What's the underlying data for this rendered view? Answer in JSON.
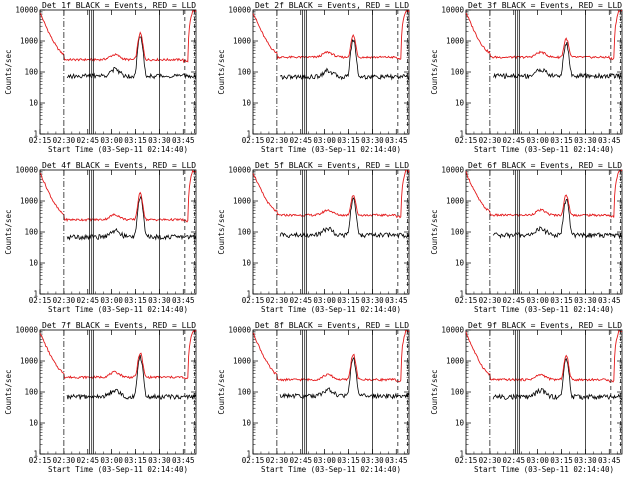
{
  "chart_data": [
    {
      "type": "line",
      "title": "Det 1f BLACK = Events, RED = LLD",
      "xlabel": "Start Time (03-Sep-11 02:14:40)",
      "ylabel": "Counts/sec",
      "log_y": true,
      "ylim": [
        1,
        10000
      ],
      "xlim": [
        "02:15",
        "03:53"
      ],
      "x_ticks": [
        "02:15",
        "02:30",
        "02:45",
        "03:00",
        "03:15",
        "03:30",
        "03:45"
      ],
      "y_ticks": [
        "1",
        "10",
        "100",
        "1000",
        "10000"
      ],
      "red_level": 250,
      "black_level": 75,
      "peak": 1500,
      "red_label": "RED = LLD",
      "black_label": "BLACK = Events"
    },
    {
      "type": "line",
      "title": "Det 2f BLACK = Events, RED = LLD",
      "xlabel": "Start Time (03-Sep-11 02:14:40)",
      "ylabel": "Counts/sec",
      "log_y": true,
      "ylim": [
        1,
        10000
      ],
      "xlim": [
        "02:15",
        "03:53"
      ],
      "x_ticks": [
        "02:15",
        "02:30",
        "02:45",
        "03:00",
        "03:15",
        "03:30",
        "03:45"
      ],
      "y_ticks": [
        "1",
        "10",
        "100",
        "1000",
        "10000"
      ],
      "red_level": 300,
      "black_level": 70,
      "peak": 1200,
      "red_label": "RED = LLD",
      "black_label": "BLACK = Events"
    },
    {
      "type": "line",
      "title": "Det 3f BLACK = Events, RED = LLD",
      "xlabel": "Start Time (03-Sep-11 02:14:40)",
      "ylabel": "Counts/sec",
      "log_y": true,
      "ylim": [
        1,
        10000
      ],
      "xlim": [
        "02:15",
        "03:53"
      ],
      "x_ticks": [
        "02:15",
        "02:30",
        "02:45",
        "03:00",
        "03:15",
        "03:30",
        "03:45"
      ],
      "y_ticks": [
        "1",
        "10",
        "100",
        "1000",
        "10000"
      ],
      "red_level": 300,
      "black_level": 75,
      "peak": 900,
      "red_label": "RED = LLD",
      "black_label": "BLACK = Events"
    },
    {
      "type": "line",
      "title": "Det 4f BLACK = Events, RED = LLD",
      "xlabel": "Start Time (03-Sep-11 02:14:40)",
      "ylabel": "Counts/sec",
      "log_y": true,
      "ylim": [
        1,
        10000
      ],
      "xlim": [
        "02:15",
        "03:53"
      ],
      "x_ticks": [
        "02:15",
        "02:30",
        "02:45",
        "03:00",
        "03:15",
        "03:30",
        "03:45"
      ],
      "y_ticks": [
        "1",
        "10",
        "100",
        "1000",
        "10000"
      ],
      "red_level": 250,
      "black_level": 70,
      "peak": 1500,
      "red_label": "RED = LLD",
      "black_label": "BLACK = Events"
    },
    {
      "type": "line",
      "title": "Det 5f BLACK = Events, RED = LLD",
      "xlabel": "Start Time (03-Sep-11 02:14:40)",
      "ylabel": "Counts/sec",
      "log_y": true,
      "ylim": [
        1,
        10000
      ],
      "xlim": [
        "02:15",
        "03:53"
      ],
      "x_ticks": [
        "02:15",
        "02:30",
        "02:45",
        "03:00",
        "03:15",
        "03:30",
        "03:45"
      ],
      "y_ticks": [
        "1",
        "10",
        "100",
        "1000",
        "10000"
      ],
      "red_level": 350,
      "black_level": 80,
      "peak": 1200,
      "red_label": "RED = LLD",
      "black_label": "BLACK = Events"
    },
    {
      "type": "line",
      "title": "Det 6f BLACK = Events, RED = LLD",
      "xlabel": "Start Time (03-Sep-11 02:14:40)",
      "ylabel": "Counts/sec",
      "log_y": true,
      "ylim": [
        1,
        10000
      ],
      "xlim": [
        "02:15",
        "03:53"
      ],
      "x_ticks": [
        "02:15",
        "02:30",
        "02:45",
        "03:00",
        "03:15",
        "03:30",
        "03:45"
      ],
      "y_ticks": [
        "1",
        "10",
        "100",
        "1000",
        "10000"
      ],
      "red_level": 350,
      "black_level": 80,
      "peak": 1200,
      "red_label": "RED = LLD",
      "black_label": "BLACK = Events"
    },
    {
      "type": "line",
      "title": "Det 7f BLACK = Events, RED = LLD",
      "xlabel": "Start Time (03-Sep-11 02:14:40)",
      "ylabel": "Counts/sec",
      "log_y": true,
      "ylim": [
        1,
        10000
      ],
      "xlim": [
        "02:15",
        "03:53"
      ],
      "x_ticks": [
        "02:15",
        "02:30",
        "02:45",
        "03:00",
        "03:15",
        "03:30",
        "03:45"
      ],
      "y_ticks": [
        "1",
        "10",
        "100",
        "1000",
        "10000"
      ],
      "red_level": 300,
      "black_level": 70,
      "peak": 1500,
      "red_label": "RED = LLD",
      "black_label": "BLACK = Events"
    },
    {
      "type": "line",
      "title": "Det 8f BLACK = Events, RED = LLD",
      "xlabel": "Start Time (03-Sep-11 02:14:40)",
      "ylabel": "Counts/sec",
      "log_y": true,
      "ylim": [
        1,
        10000
      ],
      "xlim": [
        "02:15",
        "03:53"
      ],
      "x_ticks": [
        "02:15",
        "02:30",
        "02:45",
        "03:00",
        "03:15",
        "03:30",
        "03:45"
      ],
      "y_ticks": [
        "1",
        "10",
        "100",
        "1000",
        "10000"
      ],
      "red_level": 250,
      "black_level": 75,
      "peak": 1400,
      "red_label": "RED = LLD",
      "black_label": "BLACK = Events"
    },
    {
      "type": "line",
      "title": "Det 9f BLACK = Events, RED = LLD",
      "xlabel": "Start Time (03-Sep-11 02:14:40)",
      "ylabel": "Counts/sec",
      "log_y": true,
      "ylim": [
        1,
        10000
      ],
      "xlim": [
        "02:15",
        "03:53"
      ],
      "x_ticks": [
        "02:15",
        "02:30",
        "02:45",
        "03:00",
        "03:15",
        "03:30",
        "03:45"
      ],
      "y_ticks": [
        "1",
        "10",
        "100",
        "1000",
        "10000"
      ],
      "red_level": 250,
      "black_level": 70,
      "peak": 1200,
      "red_label": "RED = LLD",
      "black_label": "BLACK = Events"
    }
  ],
  "colors": {
    "events": "#000000",
    "lld": "#e41a1c",
    "axes": "#000000",
    "background": "#ffffff"
  }
}
